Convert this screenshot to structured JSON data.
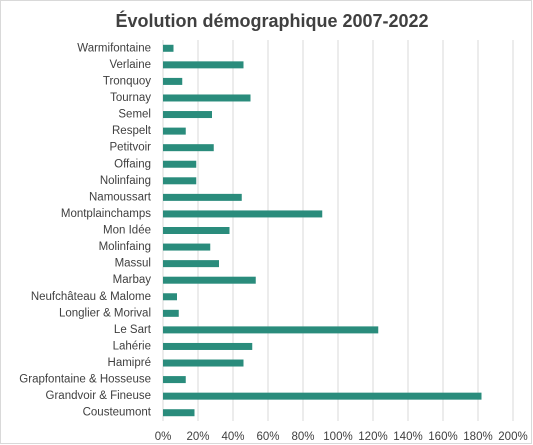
{
  "chart_data": {
    "type": "bar",
    "orientation": "horizontal",
    "title": "Évolution démographique 2007-2022",
    "categories": [
      "Warmifontaine",
      "Verlaine",
      "Tronquoy",
      "Tournay",
      "Semel",
      "Respelt",
      "Petitvoir",
      "Offaing",
      "Nolinfaing",
      "Namoussart",
      "Montplainchamps",
      "Mon Idée",
      "Molinfaing",
      "Massul",
      "Marbay",
      "Neufchâteau & Malome",
      "Longlier & Morival",
      "Le Sart",
      "Lahérie",
      "Hamipré",
      "Grapfontaine & Hosseuse",
      "Grandvoir & Fineuse",
      "Cousteumont"
    ],
    "values": [
      6,
      46,
      11,
      50,
      28,
      13,
      29,
      19,
      19,
      45,
      91,
      38,
      27,
      32,
      53,
      8,
      9,
      123,
      51,
      46,
      13,
      182,
      18
    ],
    "color": "#2a8c7c",
    "xlim": [
      0,
      200
    ],
    "xticks": [
      {
        "value": 0,
        "label": "0%"
      },
      {
        "value": 20,
        "label": "20%"
      },
      {
        "value": 40,
        "label": "40%"
      },
      {
        "value": 60,
        "label": "60%"
      },
      {
        "value": 80,
        "label": "80%"
      },
      {
        "value": 100,
        "label": "100%"
      },
      {
        "value": 120,
        "label": "120%"
      },
      {
        "value": 140,
        "label": "140%"
      },
      {
        "value": 160,
        "label": "160%"
      },
      {
        "value": 180,
        "label": "180%"
      },
      {
        "value": 200,
        "label": "200%"
      }
    ],
    "grid": true
  }
}
